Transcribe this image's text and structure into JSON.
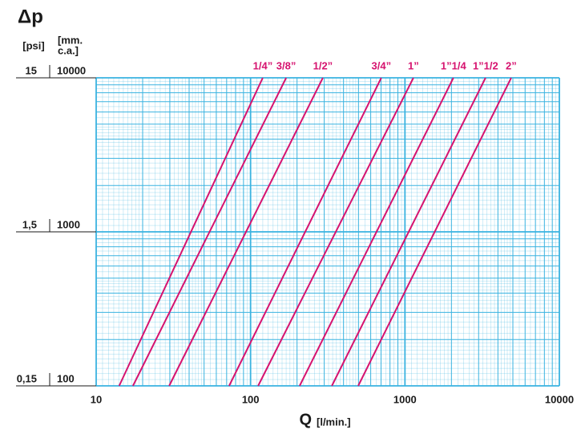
{
  "chart_data": {
    "type": "line",
    "title": "Δp",
    "y2_label": "[psi]",
    "y_label": [
      "[mm.",
      "c.a.]"
    ],
    "x_label": "Q",
    "x_unit": "[l/min.]",
    "log_x": true,
    "log_y": true,
    "grid": true,
    "grid_color": "#3ab3e0",
    "xlim": [
      10,
      10000
    ],
    "xticks": [
      10,
      100,
      1000,
      10000
    ],
    "ylim": [
      100,
      10000
    ],
    "yticks": [
      100,
      1000,
      10000
    ],
    "y2lim": [
      0.15,
      15
    ],
    "y2ticks": [
      {
        "value": 0.15,
        "label": "0,15"
      },
      {
        "value": 1.5,
        "label": "1,5"
      },
      {
        "value": 15,
        "label": "15"
      }
    ],
    "series": [
      {
        "name": "1/4”",
        "color": "#d6136f",
        "x": [
          14.1,
          120
        ],
        "values": [
          100,
          10000
        ]
      },
      {
        "name": "3/8”",
        "color": "#d6136f",
        "x": [
          17.3,
          170
        ],
        "values": [
          100,
          10000
        ]
      },
      {
        "name": "1/2”",
        "color": "#d6136f",
        "x": [
          29.7,
          294
        ],
        "values": [
          100,
          10000
        ]
      },
      {
        "name": "3/4”",
        "color": "#d6136f",
        "x": [
          72.6,
          703
        ],
        "values": [
          100,
          10000
        ]
      },
      {
        "name": "1”",
        "color": "#d6136f",
        "x": [
          112,
          1135
        ],
        "values": [
          100,
          10000
        ]
      },
      {
        "name": "1”1/4",
        "color": "#d6136f",
        "x": [
          208,
          2060
        ],
        "values": [
          100,
          10000
        ]
      },
      {
        "name": "1”1/2",
        "color": "#d6136f",
        "x": [
          336,
          3325
        ],
        "values": [
          100,
          10000
        ]
      },
      {
        "name": "2”",
        "color": "#d6136f",
        "x": [
          498,
          4875
        ],
        "values": [
          100,
          10000
        ]
      }
    ]
  }
}
